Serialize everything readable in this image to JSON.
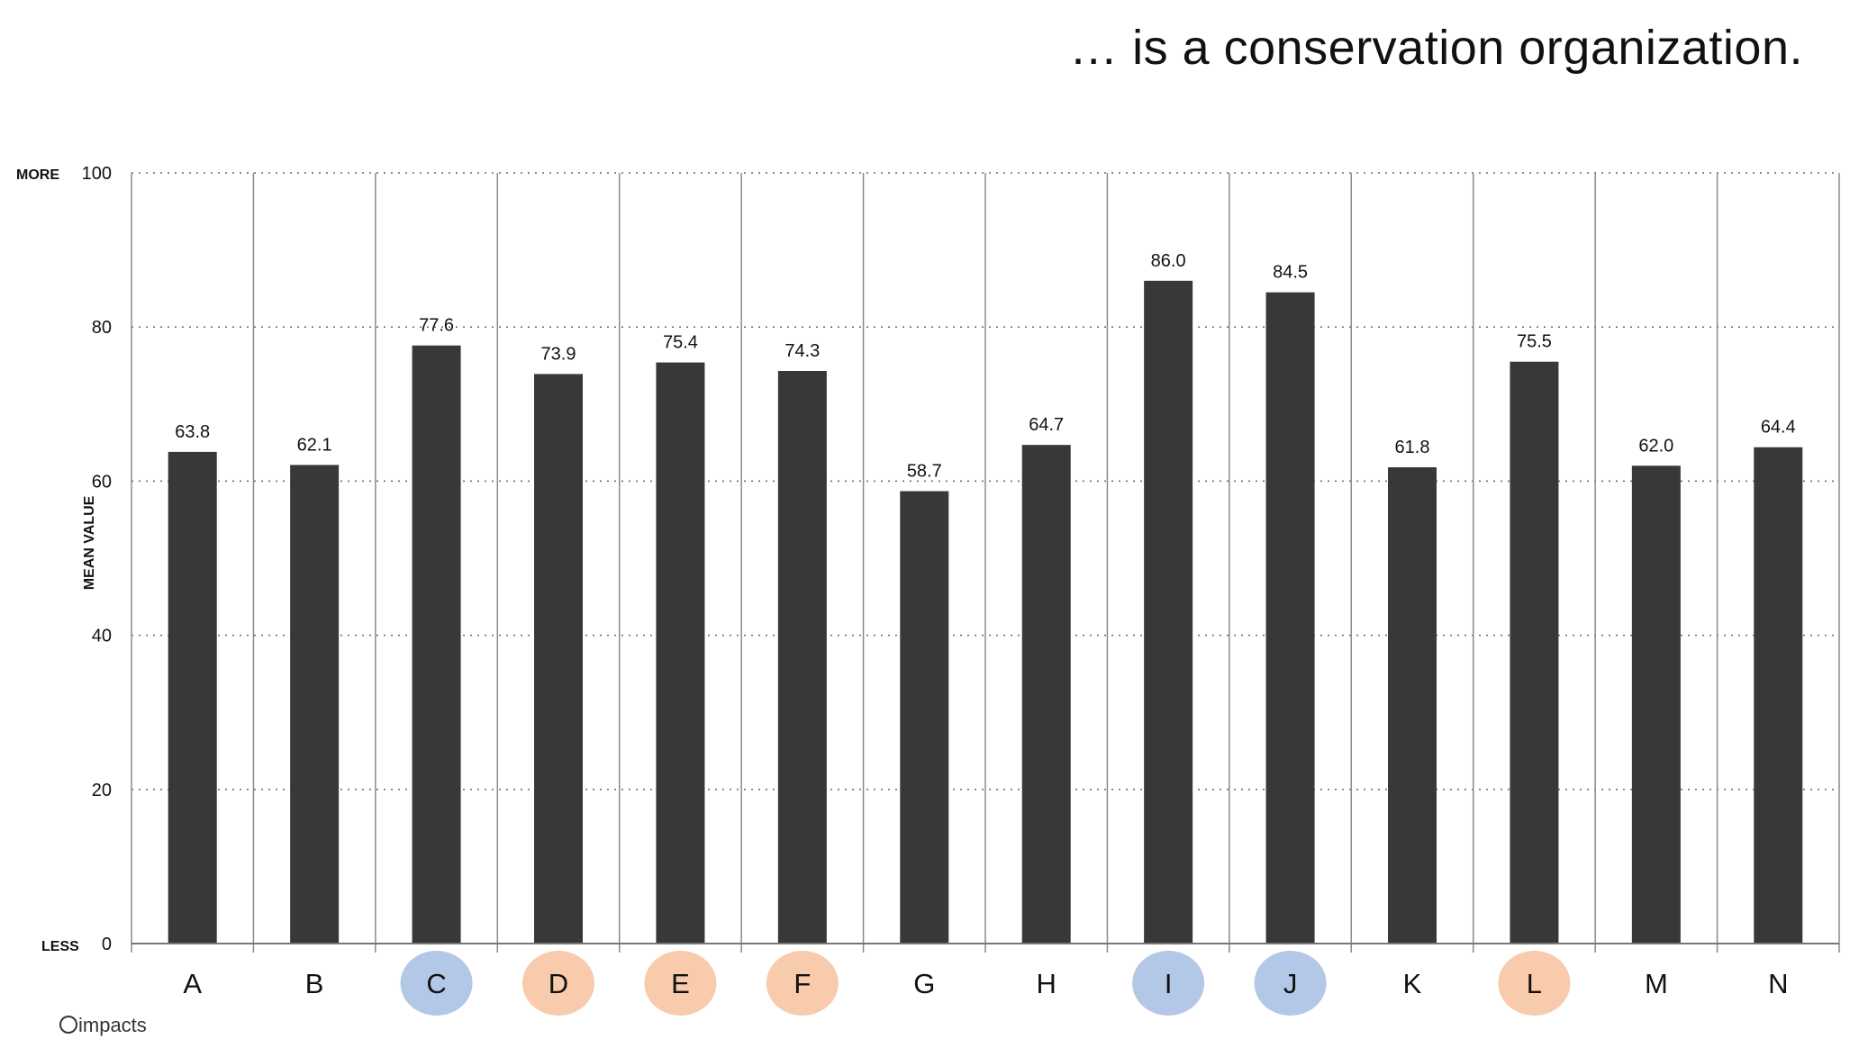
{
  "title": "… is a conservation organization.",
  "brand": "impacts",
  "colors": {
    "bar": "#393836",
    "highlight_blue": "#b3c7e6",
    "highlight_orange": "#f7cbac"
  },
  "chart_data": {
    "type": "bar",
    "title": "… is a conservation organization.",
    "ylabel": "MEAN VALUE",
    "y_top_label": "MORE",
    "y_bottom_label": "LESS",
    "ylim": [
      0,
      100
    ],
    "yticks": [
      0,
      20,
      40,
      60,
      80,
      100
    ],
    "grid": true,
    "categories": [
      "A",
      "B",
      "C",
      "D",
      "E",
      "F",
      "G",
      "H",
      "I",
      "J",
      "K",
      "L",
      "M",
      "N"
    ],
    "values": [
      63.8,
      62.1,
      77.6,
      73.9,
      75.4,
      74.3,
      58.7,
      64.7,
      86.0,
      84.5,
      61.8,
      75.5,
      62.0,
      64.4
    ],
    "value_labels": [
      "63.8",
      "62.1",
      "77.6",
      "73.9",
      "75.4",
      "74.3",
      "58.7",
      "64.7",
      "86.0",
      "84.5",
      "61.8",
      "75.5",
      "62.0",
      "64.4"
    ],
    "category_highlight": [
      "none",
      "none",
      "blue",
      "orange",
      "orange",
      "orange",
      "none",
      "none",
      "blue",
      "blue",
      "none",
      "orange",
      "none",
      "none"
    ]
  }
}
